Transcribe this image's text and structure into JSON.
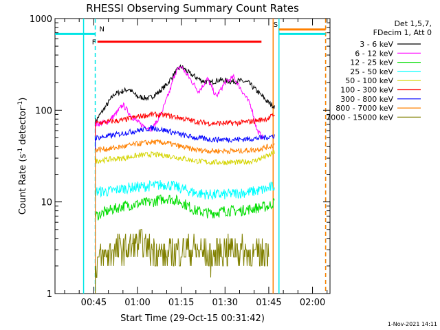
{
  "chart_data": {
    "type": "line",
    "title": "RHESSI Observing Summary Count Rates",
    "xlabel": "Start Time (29-Oct-15 00:31:42)",
    "ylabel": "Count Rate (s",
    "ylabel_sup1": "-1",
    "ylabel_mid": " detector",
    "ylabel_sup2": "-1",
    "ylabel_end": ")",
    "y_scale": "log",
    "ylim": [
      1,
      1000
    ],
    "xlim": [
      "00:31:42",
      "02:06:00"
    ],
    "x_ticks": [
      "00:45",
      "01:00",
      "01:15",
      "01:30",
      "01:45",
      "02:00"
    ],
    "y_ticks": [
      "1",
      "10",
      "100",
      "1000"
    ],
    "legend_header": [
      "Det 1,5,7,",
      "FDecim 1, Att 0"
    ],
    "legend_position": "right",
    "series": [
      {
        "name": "3 - 6 keV",
        "color": "#000000",
        "x": [
          "00:45:30",
          "00:52",
          "00:57",
          "01:00",
          "01:04",
          "01:07",
          "01:10",
          "01:13",
          "01:15",
          "01:18",
          "01:22",
          "01:25",
          "01:28",
          "01:32",
          "01:35",
          "01:38",
          "01:42",
          "01:45",
          "01:47"
        ],
        "values": [
          75,
          150,
          170,
          140,
          135,
          155,
          190,
          260,
          300,
          250,
          210,
          200,
          215,
          205,
          210,
          200,
          150,
          120,
          110
        ]
      },
      {
        "name": "6 - 12 keV",
        "color": "#ff00ff",
        "x": [
          "00:45:30",
          "00:50",
          "00:53",
          "00:55",
          "00:58",
          "01:01",
          "01:05",
          "01:08",
          "01:11",
          "01:13",
          "01:15",
          "01:18",
          "01:21",
          "01:24",
          "01:27",
          "01:30",
          "01:33",
          "01:36",
          "01:39",
          "01:41",
          "01:43"
        ],
        "values": [
          70,
          75,
          95,
          115,
          85,
          70,
          62,
          90,
          160,
          260,
          300,
          220,
          160,
          220,
          140,
          200,
          230,
          160,
          110,
          60,
          50
        ]
      },
      {
        "name": "12 - 25 keV",
        "color": "#00dd00",
        "x": [
          "00:45:30",
          "00:50",
          "00:55",
          "01:00",
          "01:05",
          "01:10",
          "01:15",
          "01:20",
          "01:25",
          "01:30",
          "01:35",
          "01:40",
          "01:45",
          "01:47"
        ],
        "values": [
          7,
          8,
          9,
          9.5,
          10,
          11,
          10,
          8,
          7.5,
          8,
          8,
          8.5,
          9,
          10
        ]
      },
      {
        "name": "25 - 50 keV",
        "color": "#00ffff",
        "x": [
          "00:45:30",
          "00:50",
          "00:55",
          "01:00",
          "01:05",
          "01:10",
          "01:15",
          "01:20",
          "01:25",
          "01:30",
          "01:35",
          "01:40",
          "01:45",
          "01:47"
        ],
        "values": [
          13,
          13,
          14,
          14.5,
          15,
          15.5,
          14,
          12.5,
          12,
          12,
          12.5,
          13,
          14,
          15
        ]
      },
      {
        "name": "50 - 100 keV",
        "color": "#d4d400",
        "x": [
          "00:45:30",
          "00:50",
          "00:55",
          "01:00",
          "01:05",
          "01:10",
          "01:15",
          "01:20",
          "01:25",
          "01:30",
          "01:35",
          "01:40",
          "01:45",
          "01:47"
        ],
        "values": [
          28,
          29,
          30,
          32,
          33,
          32,
          30,
          28,
          27,
          27,
          27,
          28,
          32,
          35
        ]
      },
      {
        "name": "100 - 300 keV",
        "color": "#ff0000",
        "x": [
          "00:45:30",
          "00:50",
          "00:55",
          "01:00",
          "01:05",
          "01:10",
          "01:15",
          "01:20",
          "01:25",
          "01:30",
          "01:35",
          "01:40",
          "01:45",
          "01:47"
        ],
        "values": [
          72,
          75,
          78,
          85,
          90,
          88,
          82,
          75,
          72,
          72,
          73,
          76,
          82,
          90
        ]
      },
      {
        "name": "300 - 800 keV",
        "color": "#0000ff",
        "x": [
          "00:45:30",
          "00:50",
          "00:55",
          "01:00",
          "01:05",
          "01:10",
          "01:15",
          "01:20",
          "01:25",
          "01:30",
          "01:35",
          "01:40",
          "01:45",
          "01:47"
        ],
        "values": [
          50,
          52,
          56,
          60,
          64,
          60,
          54,
          50,
          48,
          48,
          48,
          49,
          51,
          53
        ]
      },
      {
        "name": "800 - 7000 keV",
        "color": "#ff8000",
        "x": [
          "00:45:30",
          "00:50",
          "00:55",
          "01:00",
          "01:05",
          "01:10",
          "01:15",
          "01:20",
          "01:25",
          "01:30",
          "01:35",
          "01:40",
          "01:45",
          "01:47"
        ],
        "values": [
          37,
          38,
          40,
          43,
          45,
          44,
          40,
          37,
          36,
          36,
          36,
          37,
          40,
          42
        ]
      },
      {
        "name": "7000 - 15000 keV",
        "color": "#808000",
        "x": [
          "00:45:30",
          "00:48",
          "00:52",
          "00:56",
          "01:00",
          "01:05",
          "01:10",
          "01:15",
          "01:20",
          "01:25",
          "01:30",
          "01:35",
          "01:40",
          "01:45"
        ],
        "values": [
          2,
          2.5,
          3,
          3,
          3.5,
          3,
          2.5,
          3,
          3,
          2.5,
          3,
          3,
          2.5,
          3
        ]
      }
    ],
    "state_bars": [
      {
        "label": "",
        "color": "#00e5e5",
        "y": 680,
        "x_start": "00:31:42",
        "x_end": "00:45:30"
      },
      {
        "label": "N",
        "color": "#00e5e5",
        "y": 680,
        "x_start": "00:45:30",
        "x_end": "00:45:30"
      },
      {
        "label": "F",
        "color": "#ff0000",
        "y": 560,
        "x_start": "00:46:15",
        "x_end": "01:42:30"
      },
      {
        "label": "S",
        "color": "#ff8000",
        "y": 760,
        "x_start": "01:48:30",
        "x_end": "02:04:30"
      },
      {
        "label": "",
        "color": "#00e5e5",
        "y": 680,
        "x_start": "01:48:30",
        "x_end": "02:04:30"
      }
    ],
    "vertical_lines": [
      {
        "color": "#00e5e5",
        "style": "solid",
        "x": "00:41:30"
      },
      {
        "color": "#00e5e5",
        "style": "dashed",
        "x": "00:45:30"
      },
      {
        "color": "#00e5e5",
        "style": "solid",
        "x": "01:48:30"
      },
      {
        "color": "#ff8000",
        "style": "solid",
        "x": "01:46:30"
      },
      {
        "color": "#00e5e5",
        "style": "dashed",
        "x": "02:04:30"
      },
      {
        "color": "#ff8000",
        "style": "dashed",
        "x": "02:04:30"
      }
    ]
  },
  "timestamp": "1-Nov-2021 14:11"
}
